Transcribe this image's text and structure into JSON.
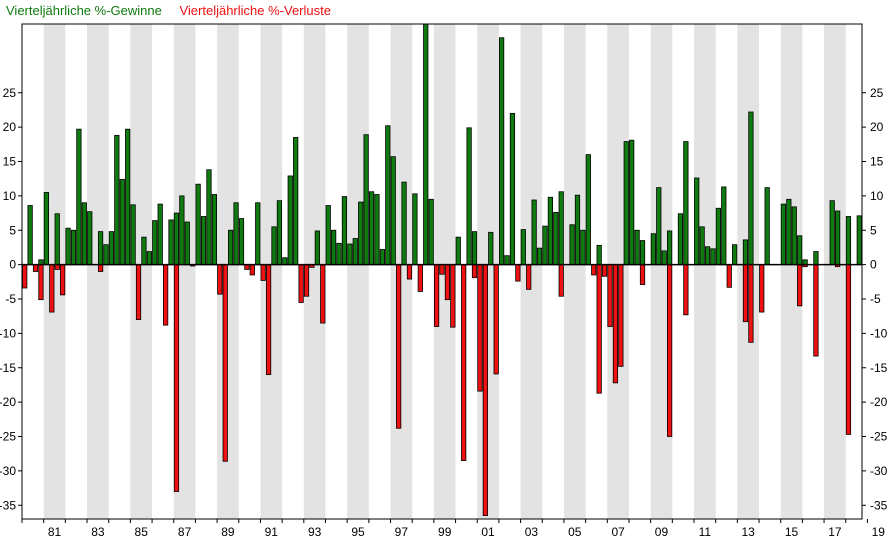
{
  "legend": {
    "gains_label": "Vierteljährliche %-Gewinne",
    "losses_label": "Vierteljährliche %-Verluste",
    "gains_color": "#0f7a0f",
    "losses_color": "#ee1111"
  },
  "chart_data": {
    "type": "bar",
    "start_year": 1980,
    "quarters_per_year": 4,
    "ylim": [
      -37,
      35
    ],
    "yticks": [
      -35,
      -30,
      -25,
      -20,
      -15,
      -10,
      -5,
      0,
      5,
      10,
      15,
      20,
      25
    ],
    "xtick_labels": [
      "81",
      "83",
      "85",
      "87",
      "89",
      "91",
      "93",
      "95",
      "97",
      "99",
      "01",
      "03",
      "05",
      "07",
      "09",
      "11",
      "13",
      "15",
      "17",
      "19"
    ],
    "shaded_bands": "alternate years shaded light grey",
    "gridlines": false,
    "series": [
      {
        "name": "Vierteljährliche %-Gewinne",
        "color": "#0f7a0f",
        "values": [
          0,
          8.6,
          0,
          0.7,
          10.5,
          0,
          7.4,
          0,
          5.3,
          5.0,
          19.7,
          9.0,
          7.7,
          0,
          4.8,
          2.9,
          4.8,
          18.8,
          12.4,
          19.7,
          8.7,
          0,
          4.0,
          1.9,
          6.4,
          8.8,
          0,
          6.5,
          7.5,
          10.0,
          6.2,
          0,
          11.7,
          7.0,
          13.8,
          10.2,
          0,
          0,
          5.0,
          9.0,
          6.7,
          0,
          0,
          9.0,
          0,
          0,
          5.5,
          9.3,
          1.0,
          12.9,
          18.5,
          0,
          0,
          0,
          4.9,
          0,
          8.6,
          5.0,
          3.1,
          9.9,
          3.0,
          3.8,
          9.1,
          18.9,
          10.6,
          10.2,
          2.2,
          20.2,
          15.7,
          0,
          12.0,
          0,
          10.3,
          0,
          35.0,
          9.5,
          0,
          0,
          0,
          0,
          4.0,
          0,
          19.9,
          4.8,
          0,
          0,
          4.7,
          0,
          33.0,
          1.3,
          22.0,
          0,
          5.1,
          0,
          9.4,
          2.4,
          5.6,
          9.8,
          7.6,
          10.6,
          0,
          5.8,
          10.1,
          5.0,
          16.0,
          0,
          2.8,
          0,
          0,
          0,
          0,
          17.9,
          18.1,
          5.0,
          3.5,
          0,
          4.5,
          11.2,
          2.0,
          4.9,
          0,
          7.4,
          17.9,
          0,
          12.6,
          5.5,
          2.6,
          2.3,
          8.2,
          11.3,
          0,
          2.9,
          0,
          3.6,
          22.2,
          0,
          0,
          11.2,
          0,
          0,
          8.8,
          9.5,
          8.4,
          4.2,
          0.7,
          0,
          1.9,
          0,
          0,
          9.3,
          7.8,
          0,
          7.0,
          0,
          7.1
        ]
      },
      {
        "name": "Vierteljährliche %-Verluste",
        "color": "#ee1111",
        "values": [
          -3.4,
          0,
          -1.0,
          -5.1,
          0,
          -6.9,
          -0.7,
          -4.4,
          0,
          0,
          0,
          0,
          0,
          0,
          -1.0,
          0,
          0,
          0,
          0,
          0,
          0,
          -8.0,
          0,
          0,
          0,
          0,
          -8.8,
          0,
          -33.0,
          0,
          0,
          -0.2,
          0,
          0,
          0,
          0,
          -4.3,
          -28.6,
          0,
          0,
          0,
          -0.7,
          -1.5,
          0,
          -2.3,
          -16.0,
          0,
          0,
          0,
          0,
          0,
          -5.5,
          -4.6,
          -0.4,
          0,
          -8.5,
          0,
          0,
          0,
          0,
          0,
          0,
          0,
          0,
          0,
          0,
          0,
          0,
          0,
          -23.8,
          0,
          -2.1,
          0,
          -3.9,
          0,
          0,
          -9.0,
          -1.4,
          -5.1,
          -9.1,
          0,
          -28.5,
          0,
          -1.9,
          -18.4,
          -36.5,
          0,
          -15.9,
          0,
          0,
          0,
          -2.4,
          0,
          -3.6,
          0,
          0,
          0,
          0,
          0,
          -4.6,
          0,
          0,
          0,
          0,
          0,
          -1.5,
          -18.7,
          -1.7,
          -9.0,
          -17.2,
          -14.8,
          0,
          0,
          0,
          -2.9,
          0,
          0,
          0,
          0,
          -25.0,
          0,
          0,
          -7.3,
          0,
          0,
          0,
          0,
          0,
          0,
          0,
          -3.3,
          0,
          0,
          -8.3,
          -11.3,
          0,
          -6.9,
          0,
          0,
          0,
          0,
          0,
          0,
          -6.0,
          -0.3,
          0,
          -13.3,
          0,
          0,
          0,
          -0.3,
          0,
          -24.7,
          0
        ]
      }
    ]
  }
}
